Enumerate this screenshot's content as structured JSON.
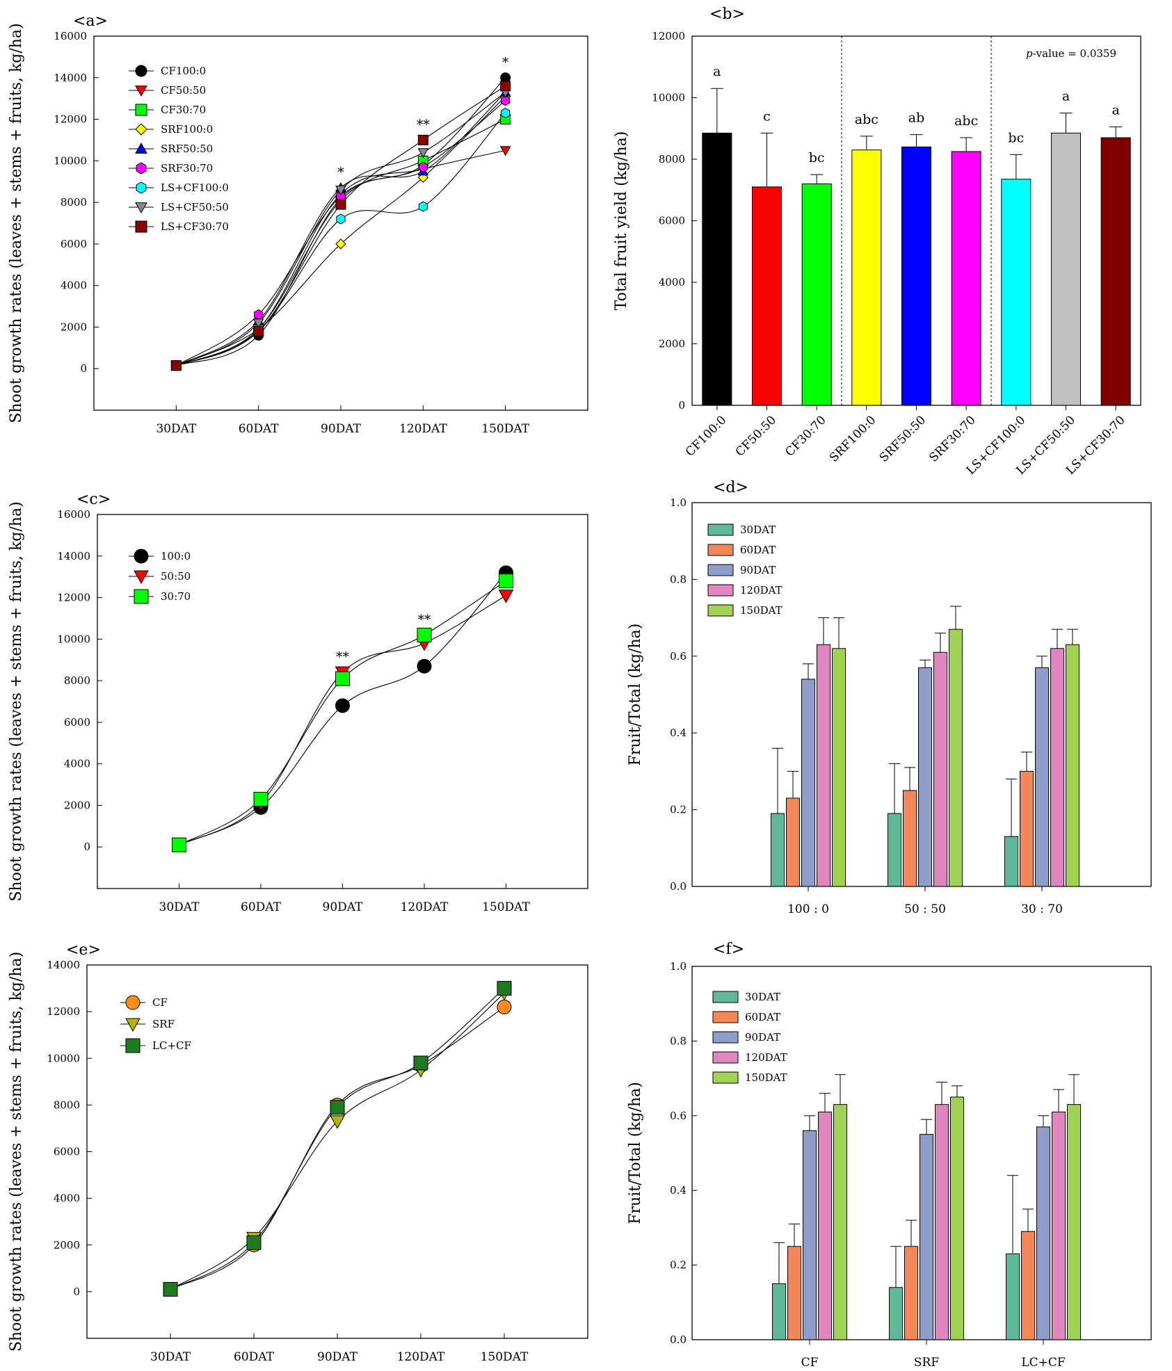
{
  "figure": {
    "charts": [
      "a",
      "b",
      "c",
      "d",
      "e",
      "f"
    ]
  },
  "chart_data": [
    {
      "id": "a",
      "panel_label": "<a>",
      "type": "line",
      "ylabel": "Shoot growth rates (leaves + stems + fruits, kg/ha)",
      "categories": [
        "30DAT",
        "60DAT",
        "90DAT",
        "120DAT",
        "150DAT"
      ],
      "yticks": [
        0,
        2000,
        4000,
        6000,
        8000,
        10000,
        12000,
        14000,
        16000
      ],
      "ylim": [
        -2000,
        16000
      ],
      "significance": [
        "",
        "",
        "*",
        "**",
        "*"
      ],
      "series": [
        {
          "name": "CF100:0",
          "marker": "circle",
          "color": "#000000",
          "values": [
            150,
            1600,
            8200,
            9800,
            14000
          ]
        },
        {
          "name": "CF50:50",
          "marker": "triangle-down",
          "color": "#ff0000",
          "values": [
            150,
            1900,
            8400,
            9600,
            10500
          ]
        },
        {
          "name": "CF30:70",
          "marker": "square",
          "color": "#00ff00",
          "values": [
            150,
            1900,
            8100,
            10000,
            12000
          ]
        },
        {
          "name": "SRF100:0",
          "marker": "diamond",
          "color": "#ffff00",
          "values": [
            150,
            1900,
            6000,
            9200,
            13100
          ]
        },
        {
          "name": "SRF50:50",
          "marker": "triangle-up",
          "color": "#0000ff",
          "values": [
            150,
            2300,
            8700,
            9500,
            13300
          ]
        },
        {
          "name": "SRF30:70",
          "marker": "hexagon",
          "color": "#ff00ff",
          "values": [
            150,
            2600,
            8300,
            9700,
            12900
          ]
        },
        {
          "name": "LS+CF100:0",
          "marker": "hexagon",
          "color": "#00ffff",
          "values": [
            150,
            1800,
            7200,
            7800,
            12300
          ]
        },
        {
          "name": "LS+CF50:50",
          "marker": "triangle-down",
          "color": "#888888",
          "values": [
            150,
            2200,
            8600,
            10400,
            13300
          ]
        },
        {
          "name": "LS+CF30:70",
          "marker": "square",
          "color": "#8b0000",
          "values": [
            150,
            1800,
            7900,
            11000,
            13600
          ]
        }
      ]
    },
    {
      "id": "b",
      "panel_label": "<b>",
      "type": "bar",
      "ylabel": "Total fruit yield (kg/ha)",
      "annotation": "p-value = 0.0359",
      "annotation_p": "p",
      "annotation_rest": "-value = 0.0359",
      "categories": [
        "CF100:0",
        "CF50:50",
        "CF30:70",
        "SRF100:0",
        "SRF50:50",
        "SRF30:70",
        "LS+CF100:0",
        "LS+CF50:50",
        "LS+CF30:70"
      ],
      "category_display": [
        "CF100:0",
        "CF50:50",
        "CF30:70",
        "SRF100:0",
        "SRF50:50",
        "SRF30:70",
        "LS+CF100:0",
        "LS+CF50:50",
        "LS+CF30:70"
      ],
      "values": [
        8850,
        7100,
        7200,
        8300,
        8400,
        8250,
        7350,
        8850,
        8700
      ],
      "errors": [
        1450,
        1750,
        300,
        450,
        400,
        450,
        800,
        650,
        350
      ],
      "letters": [
        "a",
        "c",
        "bc",
        "abc",
        "ab",
        "abc",
        "bc",
        "a",
        "a"
      ],
      "colors": [
        "#000000",
        "#ff0000",
        "#00ff00",
        "#ffff00",
        "#0000ff",
        "#ff00ff",
        "#00ffff",
        "#c0c0c0",
        "#800000"
      ],
      "yticks": [
        0,
        2000,
        4000,
        6000,
        8000,
        10000,
        12000
      ],
      "ylim": [
        0,
        12000
      ],
      "group_dividers_after": [
        3,
        6
      ]
    },
    {
      "id": "c",
      "panel_label": "<c>",
      "type": "line",
      "ylabel": "Shoot growth rates (leaves + stems + fruits, kg/ha)",
      "categories": [
        "30DAT",
        "60DAT",
        "90DAT",
        "120DAT",
        "150DAT"
      ],
      "yticks": [
        0,
        2000,
        4000,
        6000,
        8000,
        10000,
        12000,
        14000,
        16000
      ],
      "ylim": [
        -2000,
        16000
      ],
      "significance": [
        "",
        "",
        "**",
        "**",
        ""
      ],
      "series": [
        {
          "name": "100:0",
          "marker": "circle",
          "color": "#000000",
          "values": [
            100,
            1900,
            6800,
            8700,
            13200
          ]
        },
        {
          "name": "50:50",
          "marker": "triangle-down",
          "color": "#ff0000",
          "values": [
            100,
            2100,
            8400,
            9800,
            12100
          ]
        },
        {
          "name": "30:70",
          "marker": "square",
          "color": "#00ff00",
          "values": [
            100,
            2300,
            8100,
            10200,
            12800
          ]
        }
      ]
    },
    {
      "id": "d",
      "panel_label": "<d>",
      "type": "bar",
      "ylabel": "Fruit/Total (kg/ha)",
      "categories": [
        "100 : 0",
        "50 : 50",
        "30 : 70"
      ],
      "yticks": [
        "0.0",
        "0.2",
        "0.4",
        "0.6",
        "0.8",
        "1.0"
      ],
      "ylim": [
        0,
        1.0
      ],
      "series": [
        {
          "name": "30DAT",
          "color": "#5fb898",
          "values": [
            0.19,
            0.19,
            0.13
          ],
          "errors": [
            0.17,
            0.13,
            0.15
          ]
        },
        {
          "name": "60DAT",
          "color": "#f4875a",
          "values": [
            0.23,
            0.25,
            0.3
          ],
          "errors": [
            0.07,
            0.06,
            0.05
          ]
        },
        {
          "name": "90DAT",
          "color": "#8f9dcb",
          "values": [
            0.54,
            0.57,
            0.57
          ],
          "errors": [
            0.04,
            0.02,
            0.03
          ]
        },
        {
          "name": "120DAT",
          "color": "#e186c0",
          "values": [
            0.63,
            0.61,
            0.62
          ],
          "errors": [
            0.07,
            0.05,
            0.05
          ]
        },
        {
          "name": "150DAT",
          "color": "#a2d253",
          "values": [
            0.62,
            0.67,
            0.63
          ],
          "errors": [
            0.08,
            0.06,
            0.04
          ]
        }
      ]
    },
    {
      "id": "e",
      "panel_label": "<e>",
      "type": "line",
      "ylabel": "Shoot growth rates (leaves + stems + fruits, kg/ha)",
      "categories": [
        "30DAT",
        "60DAT",
        "90DAT",
        "120DAT",
        "150DAT"
      ],
      "yticks": [
        0,
        2000,
        4000,
        6000,
        8000,
        10000,
        12000,
        14000
      ],
      "ylim": [
        -2000,
        14000
      ],
      "series": [
        {
          "name": "CF",
          "marker": "circle",
          "color": "#ff8c1a",
          "values": [
            100,
            2000,
            8000,
            9700,
            12200
          ]
        },
        {
          "name": "SRF",
          "marker": "triangle-down",
          "color": "#b5b500",
          "values": [
            100,
            2300,
            7300,
            9500,
            12800
          ]
        },
        {
          "name": "LC+CF",
          "marker": "square",
          "color": "#1f7a1f",
          "values": [
            100,
            2100,
            7900,
            9800,
            13000
          ]
        }
      ]
    },
    {
      "id": "f",
      "panel_label": "<f>",
      "type": "bar",
      "ylabel": "Fruit/Total (kg/ha)",
      "categories": [
        "CF",
        "SRF",
        "LC+CF"
      ],
      "yticks": [
        "0.0",
        "0.2",
        "0.4",
        "0.6",
        "0.8",
        "1.0"
      ],
      "ylim": [
        0,
        1.0
      ],
      "series": [
        {
          "name": "30DAT",
          "color": "#5fb898",
          "values": [
            0.15,
            0.14,
            0.23
          ],
          "errors": [
            0.11,
            0.11,
            0.21
          ]
        },
        {
          "name": "60DAT",
          "color": "#f4875a",
          "values": [
            0.25,
            0.25,
            0.29
          ],
          "errors": [
            0.06,
            0.07,
            0.06
          ]
        },
        {
          "name": "90DAT",
          "color": "#8f9dcb",
          "values": [
            0.56,
            0.55,
            0.57
          ],
          "errors": [
            0.04,
            0.04,
            0.03
          ]
        },
        {
          "name": "120DAT",
          "color": "#e186c0",
          "values": [
            0.61,
            0.63,
            0.61
          ],
          "errors": [
            0.05,
            0.06,
            0.06
          ]
        },
        {
          "name": "150DAT",
          "color": "#a2d253",
          "values": [
            0.63,
            0.65,
            0.63
          ],
          "errors": [
            0.08,
            0.03,
            0.08
          ]
        }
      ]
    }
  ]
}
